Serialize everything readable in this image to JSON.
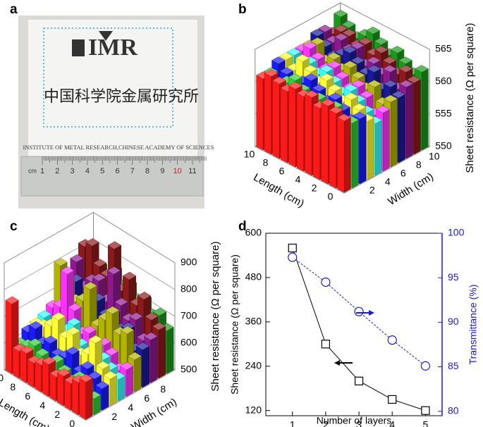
{
  "panel_labels": [
    "a",
    "b",
    "c",
    "d"
  ],
  "photo": {
    "logo": "IMR",
    "chinese": "中国科学院金属研究所",
    "institute": "INSTITUTE OF METAL RESEARCH,CHINESE ACADEMY OF SCIENCES",
    "ruler_unit": "cm",
    "ruler_numbers": [
      1,
      2,
      3,
      4,
      5,
      6,
      7,
      8,
      9,
      10,
      11
    ]
  },
  "chart_data": [
    {
      "type": "bar3d",
      "xlabel": "Length (cm)",
      "ylabel": "Width (cm)",
      "zlabel": "Sheet resistance (Ω per square)",
      "x": [
        0,
        1,
        2,
        3,
        4,
        5,
        6,
        7,
        8,
        9,
        10
      ],
      "xticks": [
        0,
        2,
        4,
        6,
        8,
        10
      ],
      "yticks": [
        2,
        4,
        6,
        8,
        10
      ],
      "zlim": [
        550,
        565
      ],
      "zticks": [
        550,
        555,
        560,
        565
      ],
      "series": [
        {
          "width": 0,
          "color": "#ff1a1a",
          "values": [
            561,
            561.5,
            562,
            561,
            562,
            561.5,
            562,
            561,
            561.5,
            562,
            561
          ]
        },
        {
          "width": 1,
          "color": "#33cc33",
          "values": [
            560,
            559,
            561,
            560,
            561,
            560,
            561,
            562,
            561,
            560,
            561
          ]
        },
        {
          "width": 2,
          "color": "#1a1aff",
          "values": [
            560,
            559,
            560,
            561,
            560,
            561,
            562,
            561,
            560,
            561,
            562
          ]
        },
        {
          "width": 3,
          "color": "#ffff33",
          "values": [
            559,
            560,
            561,
            560,
            561,
            562,
            561,
            562,
            563,
            561,
            562
          ]
        },
        {
          "width": 4,
          "color": "#33ffff",
          "values": [
            558,
            559,
            560,
            561,
            560,
            561,
            562,
            561,
            562,
            561,
            562
          ]
        },
        {
          "width": 5,
          "color": "#ff33ff",
          "values": [
            559,
            558,
            560,
            561,
            560,
            561,
            562,
            561,
            562,
            563,
            562
          ]
        },
        {
          "width": 6,
          "color": "#b3b300",
          "values": [
            560,
            559,
            561,
            560,
            561,
            562,
            561,
            562,
            561,
            563,
            562
          ]
        },
        {
          "width": 7,
          "color": "#1a1a99",
          "values": [
            560,
            561,
            560,
            562,
            561,
            562,
            563,
            562,
            561,
            562,
            563
          ]
        },
        {
          "width": 8,
          "color": "#8c1a8c",
          "values": [
            561,
            560,
            562,
            561,
            562,
            561,
            563,
            562,
            563,
            562,
            563
          ]
        },
        {
          "width": 9,
          "color": "#8c1a1a",
          "values": [
            561,
            562,
            561,
            562,
            563,
            562,
            563,
            562,
            563,
            563,
            562
          ]
        },
        {
          "width": 10,
          "color": "#1a991a",
          "values": [
            562,
            561,
            562,
            563,
            562,
            563,
            564,
            563,
            562,
            563,
            564
          ]
        }
      ]
    },
    {
      "type": "bar3d",
      "xlabel": "Length (cm)",
      "ylabel": "Width (cm)",
      "zlabel": "Sheet resistance (Ω per square)",
      "x": [
        0,
        1,
        2,
        3,
        4,
        5,
        6,
        7,
        8,
        9,
        10
      ],
      "xticks": [
        0,
        2,
        4,
        6,
        8,
        10
      ],
      "yticks": [
        2,
        4,
        6,
        8
      ],
      "zlim": [
        500,
        900
      ],
      "zticks": [
        500,
        600,
        700,
        800,
        900
      ],
      "series": [
        {
          "width": 0,
          "color": "#ff1a1a",
          "values": [
            640,
            620,
            600,
            610,
            590,
            620,
            600,
            590,
            610,
            600,
            760
          ]
        },
        {
          "width": 1,
          "color": "#33cc33",
          "values": [
            560,
            580,
            600,
            570,
            590,
            610,
            580,
            600,
            620,
            600,
            590
          ]
        },
        {
          "width": 2,
          "color": "#1a1aff",
          "values": [
            580,
            600,
            620,
            590,
            640,
            610,
            600,
            630,
            610,
            650,
            620
          ]
        },
        {
          "width": 3,
          "color": "#ffff33",
          "values": [
            600,
            620,
            700,
            640,
            620,
            680,
            650,
            700,
            660,
            640,
            630
          ]
        },
        {
          "width": 4,
          "color": "#33ffff",
          "values": [
            580,
            600,
            620,
            640,
            600,
            620,
            680,
            640,
            650,
            620,
            640
          ]
        },
        {
          "width": 5,
          "color": "#ff33ff",
          "values": [
            600,
            580,
            620,
            640,
            610,
            650,
            630,
            700,
            820,
            680,
            660
          ]
        },
        {
          "width": 6,
          "color": "#b3b300",
          "values": [
            620,
            700,
            680,
            740,
            700,
            660,
            780,
            720,
            700,
            760,
            800
          ]
        },
        {
          "width": 7,
          "color": "#1a1a99",
          "values": [
            640,
            620,
            680,
            660,
            700,
            680,
            720,
            700,
            660,
            740,
            720
          ]
        },
        {
          "width": 8,
          "color": "#8c1a8c",
          "values": [
            660,
            640,
            700,
            680,
            720,
            820,
            700,
            760,
            740,
            700,
            780
          ]
        },
        {
          "width": 9,
          "color": "#8c1a1a",
          "values": [
            680,
            700,
            760,
            720,
            800,
            740,
            880,
            760,
            780,
            840,
            820
          ]
        },
        {
          "width": 10,
          "color": "#1a991a",
          "values": [
            660,
            700,
            680,
            720,
            700,
            740,
            720,
            760,
            700,
            740,
            720
          ]
        }
      ]
    },
    {
      "type": "line",
      "xlabel": "Number of layers",
      "ylabel": "Sheet resistance (Ω per square)",
      "y2label": "Transmittance (%)",
      "y2color": "#1a1acc",
      "x": [
        1,
        2,
        3,
        4,
        5
      ],
      "xlim": [
        0.2,
        5.5
      ],
      "xticks": [
        1,
        2,
        3,
        4,
        5
      ],
      "ylim": [
        106,
        600
      ],
      "yticks": [
        120,
        240,
        360,
        480,
        600
      ],
      "y2lim": [
        79.5,
        100
      ],
      "y2ticks": [
        80,
        85,
        90,
        95,
        100
      ],
      "series": [
        {
          "color": "#000000",
          "marker": "square",
          "values": [
            560,
            300,
            200,
            150,
            120
          ]
        },
        {
          "color": "#1a1acc",
          "marker": "circle",
          "axis": "y2",
          "values": [
            97.3,
            94.5,
            91.2,
            88.0,
            85.1
          ]
        }
      ]
    }
  ]
}
